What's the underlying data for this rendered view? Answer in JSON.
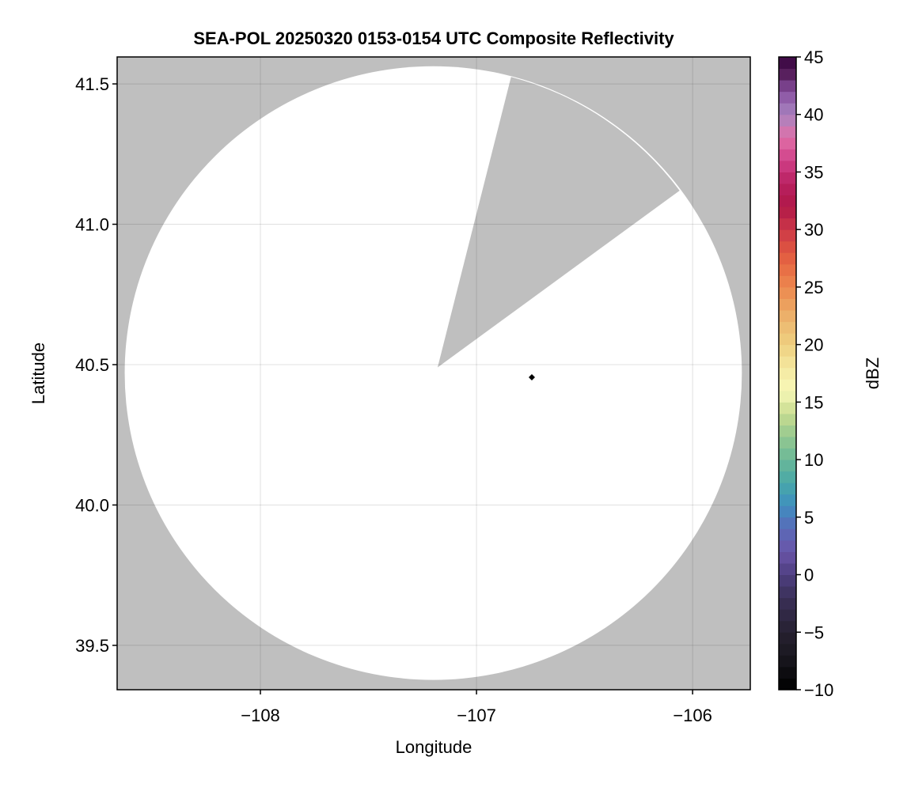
{
  "chart_data": {
    "type": "heatmap",
    "title": "SEA-POL 20250320 0153-0154 UTC Composite Reflectivity",
    "xlabel": "Longitude",
    "ylabel": "Latitude",
    "xlim": [
      -108.663,
      -105.733
    ],
    "ylim": [
      39.342,
      41.596
    ],
    "xticks": [
      -108,
      -107,
      -106
    ],
    "xtick_labels": [
      "−108",
      "−107",
      "−106"
    ],
    "yticks": [
      39.5,
      40.0,
      40.5,
      41.0,
      41.5
    ],
    "ytick_labels": [
      "39.5",
      "40.0",
      "40.5",
      "41.0",
      "41.5"
    ],
    "grid": true,
    "background_color": "#bfbfbf",
    "coverage_color": "#ffffff",
    "radar_coverage": {
      "center_lon": -107.2,
      "center_lat": 40.47,
      "radius_lon_deg": 1.428,
      "radius_lat_deg": 1.093
    },
    "blocked_sector": {
      "apex": [
        -107.18,
        40.49
      ],
      "edge1": [
        -106.84,
        41.525
      ],
      "edge2": [
        -106.06,
        41.12
      ]
    },
    "markers": [
      {
        "lon": -106.744,
        "lat": 40.455,
        "shape": "diamond",
        "color": "#000000"
      }
    ],
    "colorbar": {
      "label": "dBZ",
      "range": [
        -10,
        45
      ],
      "bin_width": 1,
      "ticks": [
        -10,
        -5,
        0,
        5,
        10,
        15,
        20,
        25,
        30,
        35,
        40,
        45
      ],
      "tick_labels": [
        "−10",
        "−5",
        "0",
        "5",
        "10",
        "15",
        "20",
        "25",
        "30",
        "35",
        "40",
        "45"
      ],
      "color_stops": [
        [
          -10,
          "#000000"
        ],
        [
          -7,
          "#1a1820"
        ],
        [
          -5,
          "#262030"
        ],
        [
          -2,
          "#3a3058"
        ],
        [
          0,
          "#4e3e80"
        ],
        [
          2,
          "#6a54a8"
        ],
        [
          4,
          "#5a6ab8"
        ],
        [
          6,
          "#3f8ec0"
        ],
        [
          8,
          "#48a8a8"
        ],
        [
          10,
          "#6ab898"
        ],
        [
          12,
          "#94c890"
        ],
        [
          14,
          "#c8dc90"
        ],
        [
          16,
          "#f8f8b8"
        ],
        [
          18,
          "#f4e8a0"
        ],
        [
          20,
          "#eed080"
        ],
        [
          22,
          "#ecb870"
        ],
        [
          24,
          "#ec9858"
        ],
        [
          26,
          "#ea7848"
        ],
        [
          28,
          "#e05840"
        ],
        [
          30,
          "#cc3848"
        ],
        [
          32,
          "#b01848"
        ],
        [
          34,
          "#b82060"
        ],
        [
          36,
          "#d04088"
        ],
        [
          38,
          "#e070a8"
        ],
        [
          40,
          "#a884c0"
        ],
        [
          42,
          "#8850a0"
        ],
        [
          44,
          "#481048"
        ],
        [
          45,
          "#3a0848"
        ]
      ]
    }
  }
}
